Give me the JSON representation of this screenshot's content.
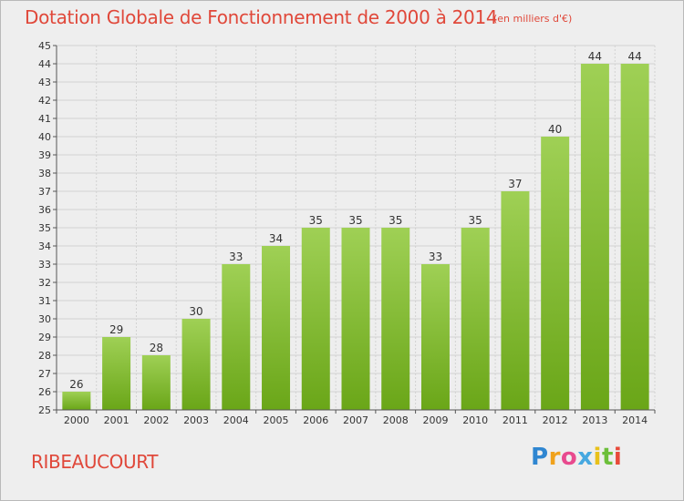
{
  "colors": {
    "title": "#e0483a",
    "bar_light": "#9fd055",
    "bar_dark": "#6aa618",
    "background": "#eeeeee"
  },
  "header": {
    "title": "Dotation Globale de Fonctionnement de 2000 à 2014",
    "subtitle": "(en milliers d'€)"
  },
  "footer": {
    "city": "RIBEAUCOURT",
    "brand": "Proxiti"
  },
  "chart_data": {
    "type": "bar",
    "title": "Dotation Globale de Fonctionnement de 2000 à 2014",
    "subtitle": "(en milliers d'€)",
    "categories": [
      "2000",
      "2001",
      "2002",
      "2003",
      "2004",
      "2005",
      "2006",
      "2007",
      "2008",
      "2009",
      "2010",
      "2011",
      "2012",
      "2013",
      "2014"
    ],
    "values": [
      26,
      29,
      28,
      30,
      33,
      34,
      35,
      35,
      35,
      33,
      35,
      37,
      40,
      44,
      44
    ],
    "ylim": [
      25,
      45
    ],
    "yticks": [
      25,
      26,
      27,
      28,
      29,
      30,
      31,
      32,
      33,
      34,
      35,
      36,
      37,
      38,
      39,
      40,
      41,
      42,
      43,
      44,
      45
    ],
    "grid": true,
    "legend": "none"
  }
}
